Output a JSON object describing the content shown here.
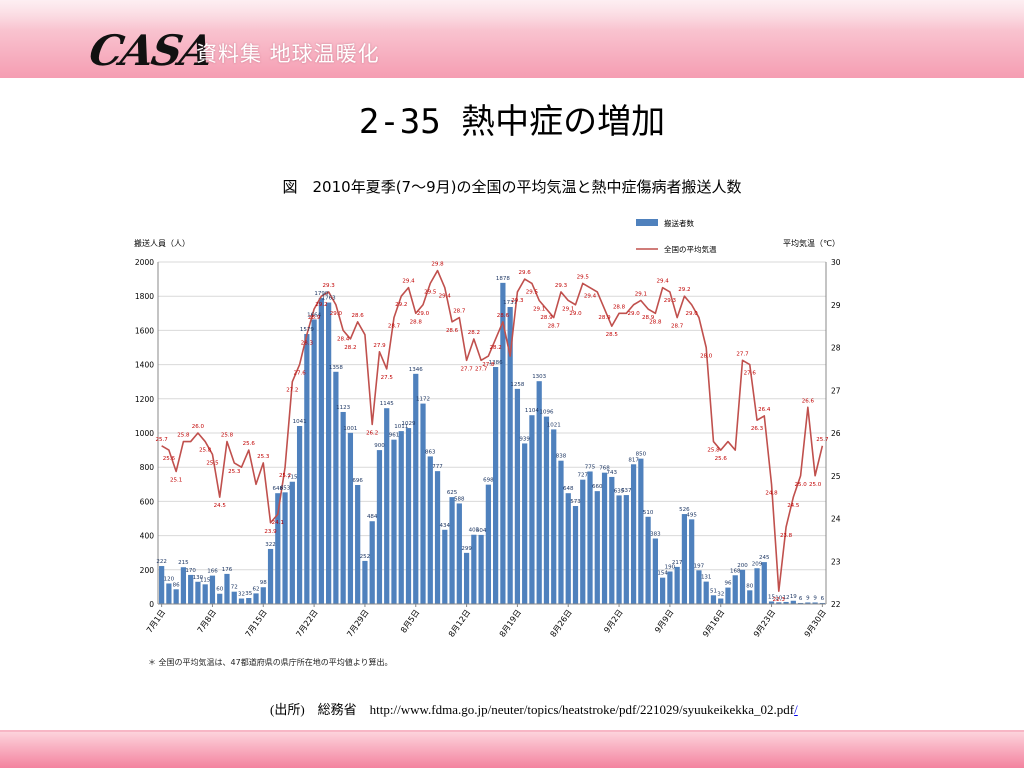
{
  "slide": {
    "logo_text": "CASA",
    "subtitle": "資料集 地球温暖化",
    "title": "2-35 熱中症の増加",
    "caption": "図　2010年夏季(7～9月)の全国の平均気温と熱中症傷病者搬送人数",
    "note": "＊ 全国の平均気温は、47都道府県の県庁所在地の平均値より算出。",
    "source_prefix": "(出所)　総務省　",
    "source_url": "http://www.fdma.go.jp/neuter/topics/heatstroke/pdf/221029/syuukeikekka_02.pdf",
    "source_suffix": "/"
  },
  "colors": {
    "bar": "#4f81bd",
    "line": "#c0504d",
    "top_band": "#f59db2",
    "bottom_band": "#f3839f"
  },
  "chart_data": {
    "type": "bar+line",
    "ylabel_left": "搬送人員（人）",
    "ylabel_right": "平均気温（℃）",
    "legend": [
      "搬送者数",
      "全国の平均気温"
    ],
    "legend_position": "top-right",
    "ylim_left": [
      0,
      2000
    ],
    "yticks_left": [
      "0",
      "200",
      "400",
      "600",
      "800",
      "1000",
      "1200",
      "1400",
      "1600",
      "1800",
      "2000"
    ],
    "ylim_right": [
      22,
      30
    ],
    "yticks_right": [
      "22",
      "23",
      "24",
      "25",
      "26",
      "27",
      "28",
      "29",
      "30"
    ],
    "x_tick_labels": [
      "7月1日",
      "7月8日",
      "7月15日",
      "7月22日",
      "7月29日",
      "8月5日",
      "8月12日",
      "8月19日",
      "8月26日",
      "9月2日",
      "9月9日",
      "9月16日",
      "9月23日",
      "9月30日"
    ],
    "grid": true,
    "bar_values": [
      222,
      120,
      86,
      215,
      170,
      130,
      115,
      166,
      60,
      176,
      72,
      32,
      35,
      62,
      98,
      322,
      648,
      653,
      715,
      1041,
      1579,
      1664,
      1790,
      1763,
      1358,
      1123,
      1001,
      696,
      252,
      484,
      900,
      1145,
      961,
      1011,
      1029,
      1346,
      1172,
      863,
      777,
      434,
      625,
      588,
      299,
      405,
      404,
      698,
      1386,
      1878,
      1737,
      1258,
      939,
      1104,
      1303,
      1096,
      1021,
      838,
      648,
      573,
      727,
      775,
      660,
      768,
      743,
      635,
      637,
      817,
      850,
      510,
      383,
      154,
      190,
      217,
      526,
      495,
      197,
      131,
      51,
      32,
      96,
      168,
      200,
      80,
      209,
      245,
      15,
      10,
      12,
      19,
      6,
      9,
      9,
      6
    ],
    "temp_values": [
      25.7,
      25.6,
      25.1,
      25.8,
      25.8,
      26.0,
      25.8,
      25.5,
      24.5,
      25.8,
      25.3,
      25.2,
      25.6,
      24.8,
      25.3,
      23.9,
      24.1,
      25.2,
      27.2,
      27.6,
      28.3,
      28.9,
      29.2,
      29.3,
      29.0,
      28.4,
      28.2,
      28.6,
      28.3,
      26.2,
      27.9,
      27.5,
      28.7,
      29.2,
      29.4,
      28.8,
      29.0,
      29.5,
      29.8,
      29.4,
      28.6,
      28.7,
      27.7,
      28.2,
      27.7,
      27.8,
      28.2,
      28.6,
      27.8,
      29.3,
      29.6,
      29.5,
      29.1,
      28.9,
      28.7,
      29.3,
      29.1,
      29.0,
      29.5,
      29.4,
      29.3,
      28.9,
      28.5,
      28.8,
      28.8,
      29.0,
      29.1,
      28.9,
      28.8,
      29.4,
      29.3,
      28.7,
      29.2,
      29.0,
      28.7,
      28.0,
      25.8,
      25.6,
      25.8,
      25.6,
      27.7,
      27.6,
      26.3,
      26.4,
      24.8,
      22.3,
      23.8,
      24.5,
      25.0,
      26.6,
      25.0,
      25.7
    ],
    "bar_labels": [
      {
        "i": 0,
        "text": "222"
      },
      {
        "i": 1,
        "text": "120"
      },
      {
        "i": 2,
        "text": "86"
      },
      {
        "i": 3,
        "text": "215"
      },
      {
        "i": 4,
        "text": "170"
      },
      {
        "i": 5,
        "text": "130"
      },
      {
        "i": 6,
        "text": "115"
      },
      {
        "i": 7,
        "text": "166"
      },
      {
        "i": 8,
        "text": "60"
      },
      {
        "i": 9,
        "text": "176"
      },
      {
        "i": 10,
        "text": "72"
      },
      {
        "i": 11,
        "text": "32"
      },
      {
        "i": 12,
        "text": "35"
      },
      {
        "i": 13,
        "text": "62"
      },
      {
        "i": 14,
        "text": "98"
      },
      {
        "i": 15,
        "text": "322"
      },
      {
        "i": 16,
        "text": "648"
      },
      {
        "i": 17,
        "text": "653"
      },
      {
        "i": 18,
        "text": "715"
      },
      {
        "i": 19,
        "text": "1041"
      },
      {
        "i": 20,
        "text": "1579"
      },
      {
        "i": 21,
        "text": "1664"
      },
      {
        "i": 22,
        "text": "1790"
      },
      {
        "i": 23,
        "text": "1763"
      },
      {
        "i": 24,
        "text": "1358"
      },
      {
        "i": 25,
        "text": "1123"
      },
      {
        "i": 26,
        "text": "1001"
      },
      {
        "i": 27,
        "text": "696"
      },
      {
        "i": 28,
        "text": "252"
      },
      {
        "i": 29,
        "text": "484"
      },
      {
        "i": 30,
        "text": "900"
      },
      {
        "i": 31,
        "text": "1145"
      },
      {
        "i": 32,
        "text": "961"
      },
      {
        "i": 33,
        "text": "1011"
      },
      {
        "i": 34,
        "text": "1029"
      },
      {
        "i": 35,
        "text": "1346"
      },
      {
        "i": 36,
        "text": "1172"
      },
      {
        "i": 37,
        "text": "863"
      },
      {
        "i": 38,
        "text": "777"
      },
      {
        "i": 39,
        "text": "434"
      },
      {
        "i": 40,
        "text": "625"
      },
      {
        "i": 41,
        "text": "588"
      },
      {
        "i": 42,
        "text": "299"
      },
      {
        "i": 43,
        "text": "405"
      },
      {
        "i": 44,
        "text": "404"
      },
      {
        "i": 45,
        "text": "698"
      },
      {
        "i": 46,
        "text": "1386"
      },
      {
        "i": 47,
        "text": "1878"
      },
      {
        "i": 48,
        "text": "1737"
      },
      {
        "i": 49,
        "text": "1258"
      },
      {
        "i": 50,
        "text": "939"
      },
      {
        "i": 51,
        "text": "1104"
      },
      {
        "i": 52,
        "text": "1303"
      },
      {
        "i": 53,
        "text": "1096"
      },
      {
        "i": 54,
        "text": "1021"
      },
      {
        "i": 55,
        "text": "838"
      },
      {
        "i": 56,
        "text": "648"
      },
      {
        "i": 57,
        "text": "573"
      },
      {
        "i": 58,
        "text": "727"
      },
      {
        "i": 59,
        "text": "775"
      },
      {
        "i": 60,
        "text": "660"
      },
      {
        "i": 61,
        "text": "768"
      },
      {
        "i": 62,
        "text": "743"
      },
      {
        "i": 63,
        "text": "635"
      },
      {
        "i": 64,
        "text": "637"
      },
      {
        "i": 65,
        "text": "817"
      },
      {
        "i": 66,
        "text": "850"
      },
      {
        "i": 67,
        "text": "510"
      },
      {
        "i": 68,
        "text": "383"
      },
      {
        "i": 69,
        "text": "154"
      },
      {
        "i": 70,
        "text": "190"
      },
      {
        "i": 71,
        "text": "217"
      },
      {
        "i": 72,
        "text": "526"
      },
      {
        "i": 73,
        "text": "495"
      },
      {
        "i": 74,
        "text": "197"
      },
      {
        "i": 75,
        "text": "131"
      },
      {
        "i": 76,
        "text": "51"
      },
      {
        "i": 77,
        "text": "32"
      },
      {
        "i": 78,
        "text": "96"
      },
      {
        "i": 79,
        "text": "168"
      },
      {
        "i": 80,
        "text": "200"
      },
      {
        "i": 81,
        "text": "80"
      },
      {
        "i": 82,
        "text": "209"
      },
      {
        "i": 83,
        "text": "245"
      },
      {
        "i": 84,
        "text": "15"
      },
      {
        "i": 85,
        "text": "10"
      },
      {
        "i": 86,
        "text": "12"
      },
      {
        "i": 87,
        "text": "19"
      },
      {
        "i": 88,
        "text": "6"
      },
      {
        "i": 89,
        "text": "9"
      },
      {
        "i": 90,
        "text": "9"
      },
      {
        "i": 91,
        "text": "6"
      }
    ],
    "temp_labels": [
      {
        "i": 0,
        "text": "25.7"
      },
      {
        "i": 1,
        "text": "25.6"
      },
      {
        "i": 2,
        "text": "25.1"
      },
      {
        "i": 3,
        "text": "25.8"
      },
      {
        "i": 5,
        "text": "26.0"
      },
      {
        "i": 6,
        "text": "25.8"
      },
      {
        "i": 7,
        "text": "25.5"
      },
      {
        "i": 8,
        "text": "24.5"
      },
      {
        "i": 9,
        "text": "25.8"
      },
      {
        "i": 10,
        "text": "25.3"
      },
      {
        "i": 12,
        "text": "25.6"
      },
      {
        "i": 14,
        "text": "25.3"
      },
      {
        "i": 15,
        "text": "23.9"
      },
      {
        "i": 16,
        "text": "24.1"
      },
      {
        "i": 17,
        "text": "25.2"
      },
      {
        "i": 18,
        "text": "27.2"
      },
      {
        "i": 19,
        "text": "27.6"
      },
      {
        "i": 20,
        "text": "28.3"
      },
      {
        "i": 21,
        "text": "28.9"
      },
      {
        "i": 22,
        "text": "29.2"
      },
      {
        "i": 23,
        "text": "29.3"
      },
      {
        "i": 24,
        "text": "29.0"
      },
      {
        "i": 25,
        "text": "28.4"
      },
      {
        "i": 26,
        "text": "28.2"
      },
      {
        "i": 27,
        "text": "28.6"
      },
      {
        "i": 29,
        "text": "26.2"
      },
      {
        "i": 30,
        "text": "27.9"
      },
      {
        "i": 31,
        "text": "27.5"
      },
      {
        "i": 32,
        "text": "28.7"
      },
      {
        "i": 33,
        "text": "29.2"
      },
      {
        "i": 34,
        "text": "29.4"
      },
      {
        "i": 35,
        "text": "28.8"
      },
      {
        "i": 36,
        "text": "29.0"
      },
      {
        "i": 37,
        "text": "29.5"
      },
      {
        "i": 38,
        "text": "29.8"
      },
      {
        "i": 39,
        "text": "29.4"
      },
      {
        "i": 40,
        "text": "28.6"
      },
      {
        "i": 41,
        "text": "28.7"
      },
      {
        "i": 42,
        "text": "27.7"
      },
      {
        "i": 43,
        "text": "28.2"
      },
      {
        "i": 44,
        "text": "27.7"
      },
      {
        "i": 45,
        "text": "27.8"
      },
      {
        "i": 46,
        "text": "28.2"
      },
      {
        "i": 47,
        "text": "28.6"
      },
      {
        "i": 49,
        "text": "29.3"
      },
      {
        "i": 50,
        "text": "29.6"
      },
      {
        "i": 51,
        "text": "29.5"
      },
      {
        "i": 52,
        "text": "29.1"
      },
      {
        "i": 53,
        "text": "28.9"
      },
      {
        "i": 54,
        "text": "28.7"
      },
      {
        "i": 55,
        "text": "29.3"
      },
      {
        "i": 56,
        "text": "29.1"
      },
      {
        "i": 57,
        "text": "29.0"
      },
      {
        "i": 58,
        "text": "29.5"
      },
      {
        "i": 59,
        "text": "29.4"
      },
      {
        "i": 61,
        "text": "28.9"
      },
      {
        "i": 62,
        "text": "28.5"
      },
      {
        "i": 63,
        "text": "28.8"
      },
      {
        "i": 65,
        "text": "29.0"
      },
      {
        "i": 66,
        "text": "29.1"
      },
      {
        "i": 67,
        "text": "28.9"
      },
      {
        "i": 68,
        "text": "28.8"
      },
      {
        "i": 69,
        "text": "29.4"
      },
      {
        "i": 70,
        "text": "29.3"
      },
      {
        "i": 71,
        "text": "28.7"
      },
      {
        "i": 72,
        "text": "29.2"
      },
      {
        "i": 73,
        "text": "29.0"
      },
      {
        "i": 75,
        "text": "28.0"
      },
      {
        "i": 76,
        "text": "25.8"
      },
      {
        "i": 77,
        "text": "25.6"
      },
      {
        "i": 80,
        "text": "27.7"
      },
      {
        "i": 81,
        "text": "27.6"
      },
      {
        "i": 82,
        "text": "26.3"
      },
      {
        "i": 83,
        "text": "26.4"
      },
      {
        "i": 84,
        "text": "24.8"
      },
      {
        "i": 85,
        "text": "22.3"
      },
      {
        "i": 86,
        "text": "23.8"
      },
      {
        "i": 87,
        "text": "24.5"
      },
      {
        "i": 88,
        "text": "25.0"
      },
      {
        "i": 89,
        "text": "26.6"
      },
      {
        "i": 90,
        "text": "25.0"
      },
      {
        "i": 91,
        "text": "25.7"
      }
    ]
  }
}
